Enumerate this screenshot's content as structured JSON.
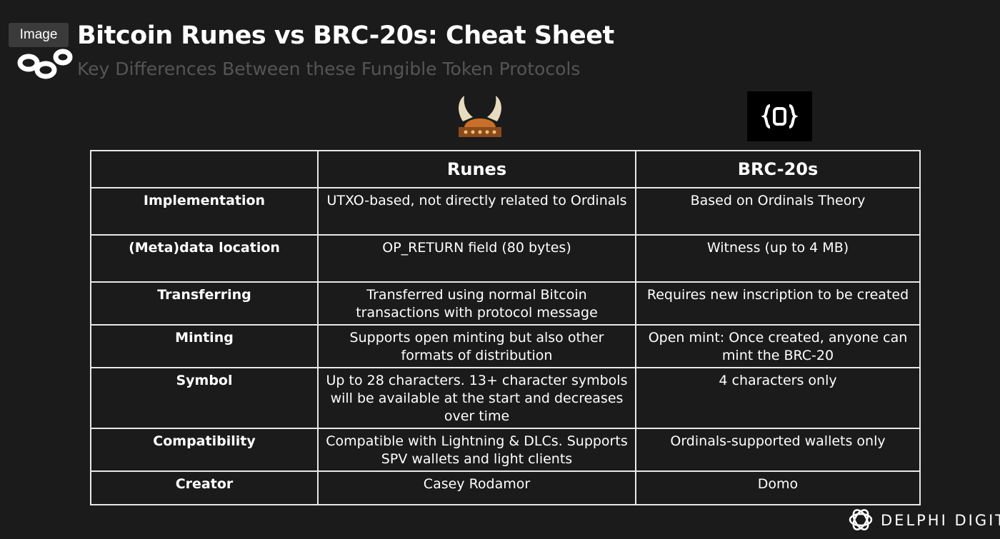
{
  "badge": "Image",
  "header": {
    "title": "Bitcoin Runes vs BRC-20s: Cheat Sheet",
    "subtitle": "Key Differences Between these Fungible Token Protocols"
  },
  "table": {
    "columns": [
      "Runes",
      "BRC-20s"
    ],
    "rows": [
      [
        "Implementation",
        "UTXO-based, not directly related to Ordinals",
        "Based on Ordinals Theory"
      ],
      [
        "(Meta)data location",
        "OP_RETURN field (80 bytes)",
        "Witness (up to 4 MB)"
      ],
      [
        "Transferring",
        "Transferred using normal Bitcoin transactions with protocol message",
        "Requires new inscription to be created"
      ],
      [
        "Minting",
        "Supports open minting but also other formats of distribution",
        "Open mint: Once created, anyone can mint the BRC-20"
      ],
      [
        "Symbol",
        "Up to 28 characters. 13+ character symbols will be available at the start and decreases over time",
        "4 characters only"
      ],
      [
        "Compatibility",
        "Compatible with Lightning & DLCs. Supports SPV wallets and light clients",
        "Ordinals-supported wallets only"
      ],
      [
        "Creator",
        "Casey Rodamor",
        "Domo"
      ]
    ]
  },
  "footer": {
    "brand": "DELPHI DIGITAL"
  }
}
